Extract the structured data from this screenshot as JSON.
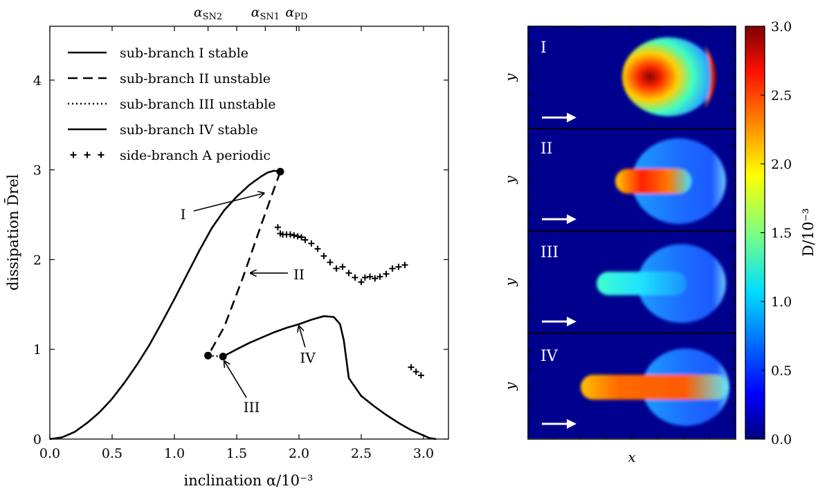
{
  "chart_data": [
    {
      "type": "line",
      "xlabel": "inclination α/10⁻³",
      "ylabel": "dissipation D̄rel",
      "xlim": [
        0,
        3.2
      ],
      "ylim": [
        0,
        4.6
      ],
      "xticks": [
        "0.0",
        "0.5",
        "1.0",
        "1.5",
        "2.0",
        "2.5",
        "3.0"
      ],
      "yticks": [
        "0",
        "1",
        "2",
        "3",
        "4"
      ],
      "top_labels": [
        {
          "text": "αSN2",
          "x": 1.27
        },
        {
          "text": "αSN1",
          "x": 1.73
        },
        {
          "text": "αPD",
          "x": 1.98
        }
      ],
      "legend_position": "top-left",
      "series": [
        {
          "name": "sub-branch I stable",
          "style": "solid",
          "x": [
            0.0,
            0.1,
            0.2,
            0.3,
            0.4,
            0.5,
            0.6,
            0.7,
            0.8,
            0.9,
            1.0,
            1.1,
            1.2,
            1.3,
            1.4,
            1.5,
            1.6,
            1.7,
            1.75,
            1.8,
            1.85
          ],
          "y": [
            0.0,
            0.02,
            0.08,
            0.18,
            0.3,
            0.45,
            0.63,
            0.83,
            1.05,
            1.3,
            1.56,
            1.83,
            2.1,
            2.35,
            2.55,
            2.7,
            2.83,
            2.93,
            2.97,
            2.99,
            2.98
          ]
        },
        {
          "name": "sub-branch II unstable",
          "style": "dashed",
          "x": [
            1.85,
            1.7,
            1.55,
            1.4,
            1.27
          ],
          "y": [
            2.98,
            2.4,
            1.8,
            1.25,
            0.93
          ]
        },
        {
          "name": "sub-branch III unstable",
          "style": "dotted",
          "x": [
            1.27,
            1.39
          ],
          "y": [
            0.93,
            0.92
          ]
        },
        {
          "name": "sub-branch IV stable",
          "style": "solid",
          "x": [
            1.39,
            1.5,
            1.6,
            1.7,
            1.8,
            1.9,
            2.0,
            2.1,
            2.2,
            2.28,
            2.33,
            2.36,
            2.4,
            2.5,
            2.6,
            2.7,
            2.8,
            2.9,
            3.0,
            3.05,
            3.1
          ],
          "y": [
            0.92,
            1.0,
            1.07,
            1.13,
            1.19,
            1.24,
            1.28,
            1.33,
            1.37,
            1.36,
            1.28,
            1.1,
            0.68,
            0.48,
            0.37,
            0.27,
            0.18,
            0.1,
            0.04,
            0.01,
            0.0
          ]
        },
        {
          "name": "side-branch A periodic",
          "style": "markers",
          "x": [
            1.83,
            1.85,
            1.87,
            1.9,
            1.93,
            1.96,
            1.99,
            2.02,
            2.05,
            2.1,
            2.15,
            2.2,
            2.25,
            2.3,
            2.35,
            2.4,
            2.45,
            2.5,
            2.53,
            2.57,
            2.61,
            2.65,
            2.7,
            2.75,
            2.8,
            2.85,
            2.9,
            2.94,
            2.98
          ],
          "y": [
            2.36,
            2.29,
            2.28,
            2.28,
            2.28,
            2.27,
            2.26,
            2.25,
            2.22,
            2.18,
            2.12,
            2.04,
            1.97,
            1.9,
            1.92,
            1.85,
            1.8,
            1.75,
            1.8,
            1.81,
            1.79,
            1.81,
            1.84,
            1.9,
            1.92,
            1.94,
            0.8,
            0.75,
            0.71
          ]
        }
      ],
      "points": [
        {
          "x": 1.85,
          "y": 2.98
        },
        {
          "x": 1.27,
          "y": 0.93
        },
        {
          "x": 1.39,
          "y": 0.92
        }
      ],
      "annotations": [
        {
          "text": "I",
          "x": 1.07,
          "y": 2.45,
          "arrow_to": [
            1.72,
            2.74
          ]
        },
        {
          "text": "II",
          "x": 2.0,
          "y": 1.78,
          "arrow_to": [
            1.61,
            1.85
          ]
        },
        {
          "text": "III",
          "x": 1.62,
          "y": 0.3,
          "arrow_to": [
            1.4,
            0.87
          ]
        },
        {
          "text": "IV",
          "x": 2.07,
          "y": 0.85,
          "arrow_to": [
            2.0,
            1.26
          ]
        }
      ]
    },
    {
      "type": "heatmap",
      "panels": [
        "I",
        "II",
        "III",
        "IV"
      ],
      "ylabel": "y",
      "xlabel": "x",
      "colorbar_label": "D/10⁻³",
      "colorbar_ticks": [
        "0.0",
        "0.5",
        "1.0",
        "1.5",
        "2.0",
        "2.5",
        "3.0"
      ],
      "colorbar_range": [
        0,
        3.0
      ],
      "flow_direction": "right",
      "colormap": [
        "#00007f",
        "#0000ff",
        "#007fff",
        "#00ffff",
        "#7fff7f",
        "#ffff00",
        "#ff7f00",
        "#ff0000",
        "#7f0000"
      ]
    }
  ]
}
